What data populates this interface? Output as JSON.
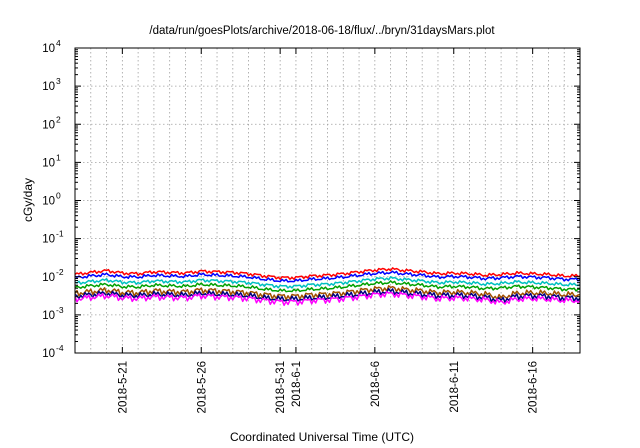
{
  "chart_data": {
    "type": "line",
    "title": "/data/run/goesPlots/archive/2018-06-18/flux/../bryn/31daysMars.plot",
    "xlabel": "Coordinated Universal Time (UTC)",
    "ylabel": "cGy/day",
    "y_scale": "log",
    "ylim": [
      0.0001,
      10000
    ],
    "xlim": [
      "2018-05-18",
      "2018-06-19"
    ],
    "grid": true,
    "legend": "none",
    "y_ticks": [
      {
        "base": "10",
        "exp": "-4",
        "value": 0.0001
      },
      {
        "base": "10",
        "exp": "-3",
        "value": 0.001
      },
      {
        "base": "10",
        "exp": "-2",
        "value": 0.01
      },
      {
        "base": "10",
        "exp": "-1",
        "value": 0.1
      },
      {
        "base": "10",
        "exp": "0",
        "value": 1
      },
      {
        "base": "10",
        "exp": "1",
        "value": 10
      },
      {
        "base": "10",
        "exp": "2",
        "value": 100
      },
      {
        "base": "10",
        "exp": "3",
        "value": 1000
      },
      {
        "base": "10",
        "exp": "4",
        "value": 10000
      }
    ],
    "x_ticks": [
      {
        "label": "2018-5-21",
        "date": "2018-05-21"
      },
      {
        "label": "2018-5-26",
        "date": "2018-05-26"
      },
      {
        "label": "2018-5-31",
        "date": "2018-05-31"
      },
      {
        "label": "2018-6-1",
        "date": "2018-06-01"
      },
      {
        "label": "2018-6-6",
        "date": "2018-06-06"
      },
      {
        "label": "2018-6-11",
        "date": "2018-06-11"
      },
      {
        "label": "2018-6-16",
        "date": "2018-06-16"
      }
    ],
    "x": [
      "2018-05-18",
      "2018-05-19",
      "2018-05-20",
      "2018-05-21",
      "2018-05-22",
      "2018-05-23",
      "2018-05-24",
      "2018-05-25",
      "2018-05-26",
      "2018-05-27",
      "2018-05-28",
      "2018-05-29",
      "2018-05-30",
      "2018-05-31",
      "2018-06-01",
      "2018-06-02",
      "2018-06-03",
      "2018-06-04",
      "2018-06-05",
      "2018-06-06",
      "2018-06-07",
      "2018-06-08",
      "2018-06-09",
      "2018-06-10",
      "2018-06-11",
      "2018-06-12",
      "2018-06-13",
      "2018-06-14",
      "2018-06-15",
      "2018-06-16",
      "2018-06-17",
      "2018-06-18",
      "2018-06-19"
    ],
    "series": [
      {
        "color": "#ff0000",
        "values": [
          0.0115,
          0.013,
          0.0145,
          0.0125,
          0.012,
          0.0135,
          0.013,
          0.0125,
          0.014,
          0.0135,
          0.013,
          0.012,
          0.0105,
          0.0095,
          0.0095,
          0.0105,
          0.011,
          0.012,
          0.0135,
          0.015,
          0.016,
          0.0145,
          0.0135,
          0.012,
          0.0125,
          0.012,
          0.011,
          0.0115,
          0.0125,
          0.012,
          0.0115,
          0.0105,
          0.0105
        ]
      },
      {
        "color": "#0000ff",
        "values": [
          0.0095,
          0.0105,
          0.0115,
          0.01,
          0.0098,
          0.011,
          0.0105,
          0.0102,
          0.0115,
          0.011,
          0.0105,
          0.0098,
          0.0086,
          0.0078,
          0.0078,
          0.0086,
          0.009,
          0.0098,
          0.011,
          0.0122,
          0.013,
          0.0118,
          0.011,
          0.0098,
          0.0102,
          0.0098,
          0.009,
          0.0094,
          0.0102,
          0.0098,
          0.0094,
          0.0086,
          0.0086
        ]
      },
      {
        "color": "#00c0c0",
        "values": [
          0.0068,
          0.0075,
          0.0082,
          0.0072,
          0.007,
          0.0078,
          0.0075,
          0.0073,
          0.0082,
          0.0078,
          0.0075,
          0.007,
          0.0062,
          0.0056,
          0.0056,
          0.0062,
          0.0064,
          0.007,
          0.0078,
          0.0087,
          0.0092,
          0.0084,
          0.0078,
          0.007,
          0.0073,
          0.007,
          0.0064,
          0.0067,
          0.0073,
          0.007,
          0.0067,
          0.0062,
          0.0062
        ]
      },
      {
        "color": "#00a000",
        "values": [
          0.0052,
          0.0058,
          0.0063,
          0.0055,
          0.0054,
          0.006,
          0.0058,
          0.0056,
          0.0063,
          0.006,
          0.0058,
          0.0054,
          0.0047,
          0.0043,
          0.0043,
          0.0047,
          0.0049,
          0.0054,
          0.006,
          0.0067,
          0.0071,
          0.0065,
          0.006,
          0.0054,
          0.0056,
          0.0054,
          0.0049,
          0.0051,
          0.0056,
          0.0054,
          0.0051,
          0.0047,
          0.0047
        ]
      },
      {
        "color": "#a05000",
        "values": [
          0.0037,
          0.0041,
          0.0045,
          0.0039,
          0.0038,
          0.0043,
          0.0041,
          0.004,
          0.0045,
          0.0043,
          0.0041,
          0.0038,
          0.0034,
          0.0031,
          0.0031,
          0.0034,
          0.0035,
          0.0038,
          0.0043,
          0.0048,
          0.0051,
          0.0046,
          0.0043,
          0.0038,
          0.004,
          0.0038,
          0.0035,
          0.0028,
          0.0037,
          0.0038,
          0.0037,
          0.0034,
          0.0034
        ]
      },
      {
        "color": "#000080",
        "values": [
          0.0031,
          0.0034,
          0.0037,
          0.0033,
          0.0032,
          0.0035,
          0.0034,
          0.0033,
          0.0037,
          0.0035,
          0.0034,
          0.0032,
          0.0028,
          0.0026,
          0.0026,
          0.0028,
          0.0029,
          0.0032,
          0.0035,
          0.0039,
          0.0042,
          0.0038,
          0.0035,
          0.0032,
          0.0033,
          0.0032,
          0.0029,
          0.0024,
          0.0031,
          0.0032,
          0.0031,
          0.0028,
          0.0028
        ]
      },
      {
        "color": "#ff00ff",
        "values": [
          0.0026,
          0.0029,
          0.0032,
          0.0028,
          0.0027,
          0.003,
          0.0029,
          0.0028,
          0.0032,
          0.003,
          0.0029,
          0.0027,
          0.0024,
          0.0022,
          0.0022,
          0.0024,
          0.0025,
          0.0027,
          0.003,
          0.0034,
          0.0036,
          0.0033,
          0.003,
          0.0027,
          0.0028,
          0.0027,
          0.0025,
          0.0021,
          0.0026,
          0.0027,
          0.0026,
          0.0024,
          0.0024
        ]
      }
    ]
  }
}
